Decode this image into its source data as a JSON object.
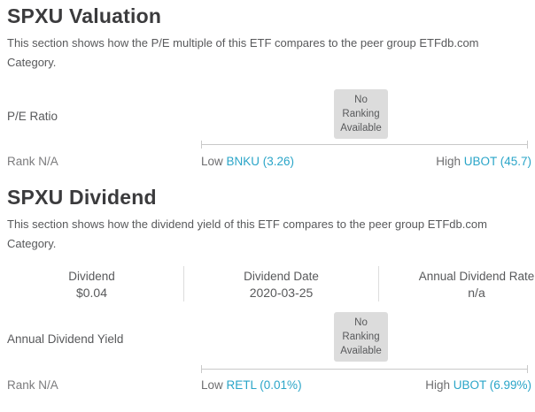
{
  "valuation": {
    "title": "SPXU Valuation",
    "description": "This section shows how the P/E multiple of this ETF compares to the peer group ETFdb.com Category.",
    "metric_label": "P/E Ratio",
    "no_ranking_text": "No Ranking Available",
    "rank_label": "Rank N/A",
    "low_prefix": "Low ",
    "low_ticker_link": "BNKU (3.26)",
    "high_prefix": "High ",
    "high_ticker_link": "UBOT (45.7)"
  },
  "dividend": {
    "title": "SPXU Dividend",
    "description": "This section shows how the dividend yield of this ETF compares to the peer group ETFdb.com Category.",
    "stats": [
      {
        "label": "Dividend",
        "value": "$0.04"
      },
      {
        "label": "Dividend Date",
        "value": "2020-03-25"
      },
      {
        "label": "Annual Dividend Rate",
        "value": "n/a"
      }
    ],
    "metric_label": "Annual Dividend Yield",
    "no_ranking_text": "No Ranking Available",
    "rank_label": "Rank N/A",
    "low_prefix": "Low ",
    "low_ticker_link": "RETL (0.01%)",
    "high_prefix": "High ",
    "high_ticker_link": "UBOT (6.99%)"
  },
  "colors": {
    "accent_link": "#2aa5c8",
    "heading_text": "#3b3b3d",
    "body_text": "#58595b",
    "muted_text": "#7b7b7d",
    "badge_background": "#dcdcdc",
    "track_line": "#c9c9c9",
    "table_divider": "#dddddd",
    "page_background": "#ffffff"
  }
}
